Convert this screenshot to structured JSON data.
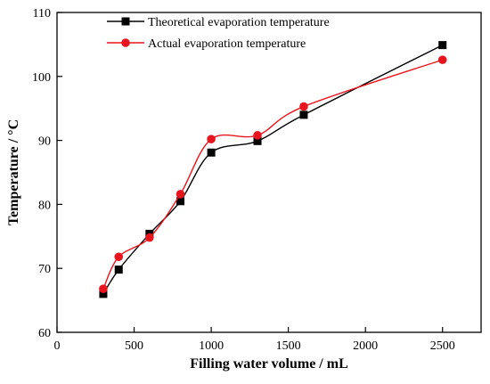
{
  "chart_data": {
    "type": "line",
    "xlabel": "Filling water volume / mL",
    "ylabel": "Temperature / °C",
    "xlim": [
      0,
      2750
    ],
    "ylim": [
      60,
      110
    ],
    "xticks": [
      0,
      500,
      1000,
      1500,
      2000,
      2500
    ],
    "yticks": [
      60,
      70,
      80,
      90,
      100,
      110
    ],
    "x_tick_labels": [
      "0",
      "500",
      "1000",
      "1500",
      "2000",
      "2500"
    ],
    "y_tick_labels": [
      "60",
      "70",
      "80",
      "90",
      "100",
      "110"
    ],
    "legend_position": "top-left",
    "series": [
      {
        "name": "Theoretical evaporation temperature",
        "color": "#000000",
        "marker": "square",
        "x": [
          300,
          400,
          600,
          800,
          1000,
          1300,
          1600,
          2500
        ],
        "y": [
          66.0,
          69.8,
          75.4,
          80.5,
          88.1,
          89.9,
          94.0,
          104.9
        ]
      },
      {
        "name": "Actual evaporation temperature",
        "color": "#e8141e",
        "marker": "circle",
        "x": [
          300,
          400,
          600,
          800,
          1000,
          1300,
          1600,
          2500
        ],
        "y": [
          66.8,
          71.8,
          74.8,
          81.6,
          90.2,
          90.8,
          95.3,
          102.6
        ]
      }
    ]
  }
}
